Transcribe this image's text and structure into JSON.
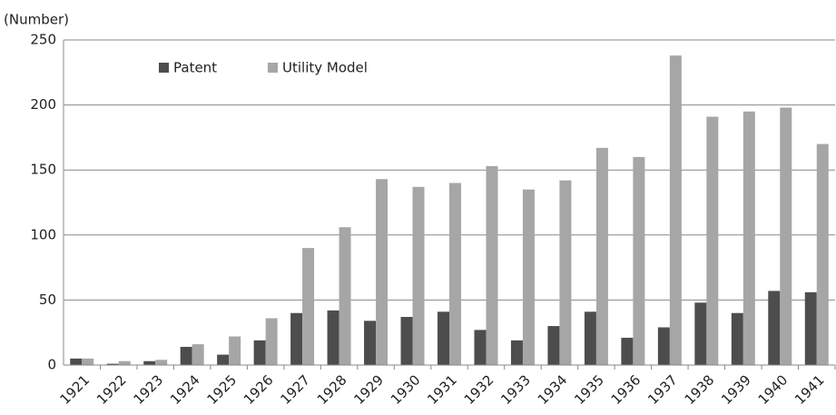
{
  "chart_data": {
    "type": "bar",
    "y_label": "(Number)",
    "categories": [
      "1921",
      "1922",
      "1923",
      "1924",
      "1925",
      "1926",
      "1927",
      "1928",
      "1929",
      "1930",
      "1931",
      "1932",
      "1933",
      "1934",
      "1935",
      "1936",
      "1937",
      "1938",
      "1939",
      "1940",
      "1941"
    ],
    "series": [
      {
        "name": "Patent",
        "color": "#4d4d4d",
        "values": [
          5,
          1,
          3,
          14,
          8,
          19,
          40,
          42,
          34,
          37,
          41,
          27,
          19,
          30,
          41,
          21,
          29,
          48,
          40,
          57,
          56
        ]
      },
      {
        "name": "Utility Model",
        "color": "#a6a6a6",
        "values": [
          5,
          3,
          4,
          16,
          22,
          36,
          90,
          106,
          143,
          137,
          140,
          153,
          135,
          142,
          167,
          160,
          238,
          191,
          195,
          198,
          170
        ]
      }
    ],
    "ylim": [
      0,
      250
    ],
    "yticks": [
      0,
      50,
      100,
      150,
      200,
      250
    ],
    "grid": true,
    "legend": "top-left"
  }
}
